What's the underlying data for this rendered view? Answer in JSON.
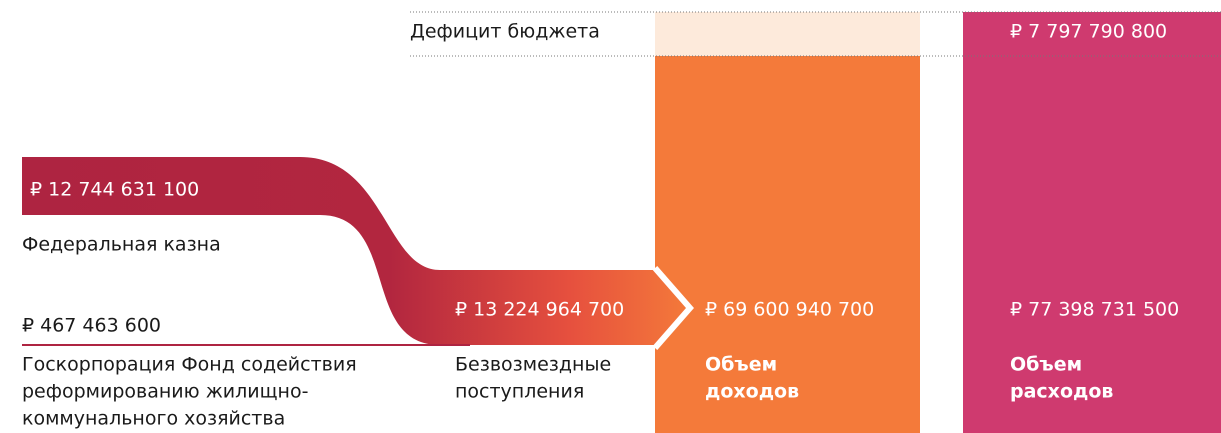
{
  "deficit": {
    "label": "Дефицит бюджета",
    "amount": "₽ 7 797 790 800"
  },
  "federal": {
    "amount": "₽ 12 744 631 100",
    "label": "Федеральная казна"
  },
  "fund": {
    "amount": "₽ 467 463 600",
    "label_lines": [
      "Госкорпорация Фонд содействия",
      "реформированию жилищно-",
      "коммунального хозяйства"
    ]
  },
  "grants": {
    "amount": "₽ 13 224 964 700",
    "label_lines": [
      "Безвозмездные",
      "поступления"
    ]
  },
  "income": {
    "amount": "₽ 69 600 940 700",
    "label_lines": [
      "Объем",
      "доходов"
    ]
  },
  "expenses": {
    "amount": "₽ 77 398 731 500",
    "label_lines": [
      "Объем",
      "расходов"
    ]
  }
}
